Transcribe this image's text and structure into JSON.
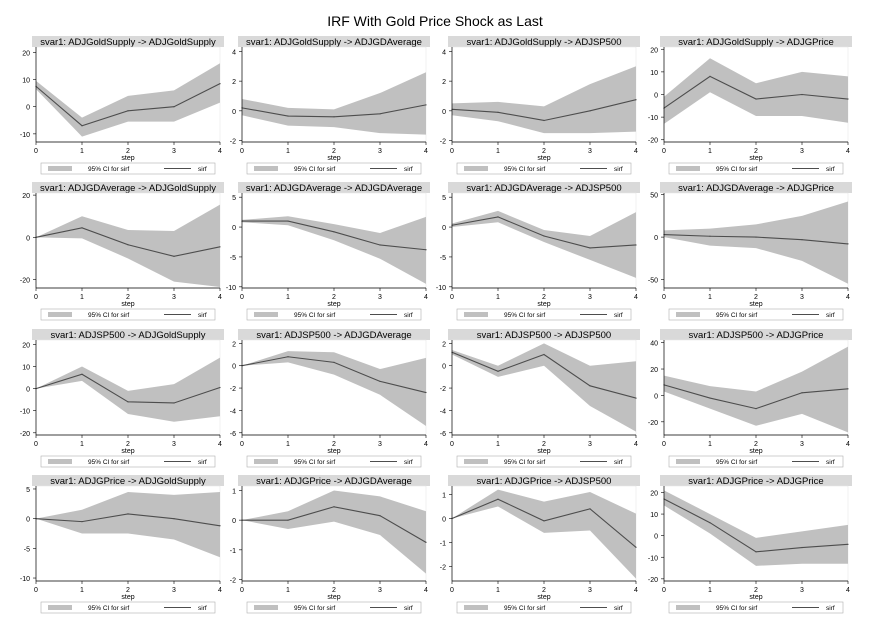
{
  "title": "IRF With Gold Price Shock as Last",
  "common": {
    "xlabel": "step",
    "x": [
      0,
      1,
      2,
      3,
      4
    ],
    "legend": {
      "ci_label": "95% CI for sirf",
      "line_label": "sirf",
      "placement": "bottom"
    },
    "colors": {
      "band": "#c0c0c0",
      "line": "#4d4d4d",
      "header": "#d9d9d9"
    }
  },
  "chart_data": [
    {
      "type": "area",
      "title": "svar1: ADJGoldSupply -> ADJGoldSupply",
      "yticks": [
        -10,
        0,
        10,
        20
      ],
      "ylim": [
        -13,
        22
      ],
      "sirf": [
        7.5,
        -7,
        -1.5,
        0,
        8.5
      ],
      "lower": [
        6.5,
        -11,
        -5.5,
        -5.5,
        1.5
      ],
      "upper": [
        9.5,
        -4,
        4,
        6,
        16
      ]
    },
    {
      "type": "area",
      "title": "svar1: ADJGoldSupply -> ADJGDAverage",
      "yticks": [
        -2,
        0,
        2,
        4
      ],
      "ylim": [
        -2.1,
        4.3
      ],
      "sirf": [
        0.2,
        -0.35,
        -0.4,
        -0.2,
        0.4
      ],
      "lower": [
        -0.3,
        -1,
        -1.1,
        -1.5,
        -1.6
      ],
      "upper": [
        0.8,
        0.2,
        0.1,
        1.2,
        2.6
      ]
    },
    {
      "type": "area",
      "title": "svar1: ADJGoldSupply -> ADJSP500",
      "yticks": [
        -2,
        0,
        2,
        4
      ],
      "ylim": [
        -2.1,
        4.3
      ],
      "sirf": [
        0.1,
        -0.1,
        -0.65,
        0,
        0.75
      ],
      "lower": [
        -0.3,
        -0.7,
        -1.5,
        -1.5,
        -1.4
      ],
      "upper": [
        0.5,
        0.6,
        0.3,
        1.8,
        3
      ]
    },
    {
      "type": "area",
      "title": "svar1: ADJGoldSupply -> ADJGPrice",
      "yticks": [
        -20,
        -10,
        0,
        10,
        20
      ],
      "ylim": [
        -21,
        21
      ],
      "sirf": [
        -6,
        8,
        -2,
        0,
        -2
      ],
      "lower": [
        -13,
        1,
        -9.5,
        -9.5,
        -12.5
      ],
      "upper": [
        -1,
        16,
        5,
        10,
        8
      ]
    },
    {
      "type": "area",
      "title": "svar1: ADJGDAverage -> ADJGoldSupply",
      "yticks": [
        -20,
        0,
        20
      ],
      "ylim": [
        -24,
        21
      ],
      "sirf": [
        0,
        4.5,
        -3.5,
        -9,
        -4.5
      ],
      "lower": [
        0,
        -0.5,
        -10,
        -21,
        -23.5
      ],
      "upper": [
        0,
        10,
        3.5,
        3,
        15.5
      ]
    },
    {
      "type": "area",
      "title": "svar1: ADJGDAverage -> ADJGDAverage",
      "yticks": [
        -10,
        -5,
        0,
        5
      ],
      "ylim": [
        -10.2,
        5.7
      ],
      "sirf": [
        1,
        1,
        -0.8,
        -3,
        -3.8
      ],
      "lower": [
        0.8,
        0.3,
        -2.2,
        -5.3,
        -9.5
      ],
      "upper": [
        1.2,
        1.8,
        0.5,
        -1,
        1.7
      ]
    },
    {
      "type": "area",
      "title": "svar1: ADJGDAverage -> ADJSP500",
      "yticks": [
        -10,
        -5,
        0,
        5
      ],
      "ylim": [
        -10.2,
        5.7
      ],
      "sirf": [
        0.3,
        1.7,
        -1.5,
        -3.5,
        -3
      ],
      "lower": [
        0,
        0.8,
        -2.5,
        -5.5,
        -8.5
      ],
      "upper": [
        0.6,
        2.7,
        -0.5,
        -1.5,
        2.5
      ]
    },
    {
      "type": "area",
      "title": "svar1: ADJGDAverage -> ADJGPrice",
      "yticks": [
        -50,
        0,
        50
      ],
      "ylim": [
        -60,
        52
      ],
      "sirf": [
        3,
        1,
        0,
        -3,
        -8
      ],
      "lower": [
        0,
        -10,
        -13,
        -28,
        -55
      ],
      "upper": [
        8,
        10,
        15,
        25,
        42
      ]
    },
    {
      "type": "area",
      "title": "svar1: ADJSP500 -> ADJGoldSupply",
      "yticks": [
        -20,
        -10,
        0,
        10,
        20
      ],
      "ylim": [
        -21,
        22
      ],
      "sirf": [
        0,
        6.5,
        -6,
        -6.5,
        0.5
      ],
      "lower": [
        0,
        3.5,
        -11.5,
        -15,
        -12.5
      ],
      "upper": [
        0,
        10,
        -1,
        2,
        14
      ]
    },
    {
      "type": "area",
      "title": "svar1: ADJSP500 -> ADJGDAverage",
      "yticks": [
        -6,
        -4,
        -2,
        0,
        2
      ],
      "ylim": [
        -6.2,
        2.3
      ],
      "sirf": [
        0,
        0.8,
        0.3,
        -1.4,
        -2.4
      ],
      "lower": [
        0,
        0.3,
        -0.8,
        -2.6,
        -5.4
      ],
      "upper": [
        0,
        1.3,
        1.2,
        -0.3,
        0.7
      ]
    },
    {
      "type": "area",
      "title": "svar1: ADJSP500 -> ADJSP500",
      "yticks": [
        -6,
        -4,
        -2,
        0,
        2
      ],
      "ylim": [
        -6.2,
        2.3
      ],
      "sirf": [
        1.2,
        -0.5,
        1,
        -1.8,
        -2.9
      ],
      "lower": [
        1,
        -1,
        0,
        -3.6,
        -5.9
      ],
      "upper": [
        1.4,
        0,
        2,
        0,
        0.4
      ]
    },
    {
      "type": "area",
      "title": "svar1: ADJSP500 -> ADJGPrice",
      "yticks": [
        -20,
        0,
        20,
        40
      ],
      "ylim": [
        -30,
        42
      ],
      "sirf": [
        8,
        -2,
        -10,
        2,
        5
      ],
      "lower": [
        3,
        -10,
        -23,
        -14,
        -28
      ],
      "upper": [
        15,
        7,
        3,
        18,
        37
      ]
    },
    {
      "type": "area",
      "title": "svar1: ADJGPrice -> ADJGoldSupply",
      "yticks": [
        -10,
        -5,
        0,
        5
      ],
      "ylim": [
        -10.5,
        5.5
      ],
      "sirf": [
        0,
        -0.5,
        0.8,
        0,
        -1.2
      ],
      "lower": [
        0,
        -2.5,
        -2.5,
        -3.5,
        -6.5
      ],
      "upper": [
        0,
        1.5,
        4.5,
        4,
        4.5
      ]
    },
    {
      "type": "area",
      "title": "svar1: ADJGPrice -> ADJGDAverage",
      "yticks": [
        -2,
        -1,
        0,
        1
      ],
      "ylim": [
        -2.05,
        1.15
      ],
      "sirf": [
        0,
        0,
        0.45,
        0.15,
        -0.75
      ],
      "lower": [
        0,
        -0.3,
        -0.05,
        -0.5,
        -1.8
      ],
      "upper": [
        0,
        0.3,
        1,
        0.8,
        0.3
      ]
    },
    {
      "type": "area",
      "title": "svar1: ADJGPrice -> ADJSP500",
      "yticks": [
        -2,
        -1,
        0,
        1
      ],
      "ylim": [
        -2.6,
        1.35
      ],
      "sirf": [
        0,
        0.8,
        -0.1,
        0.4,
        -1.2
      ],
      "lower": [
        0,
        0.5,
        -0.6,
        -0.5,
        -2.5
      ],
      "upper": [
        0,
        1.2,
        0.7,
        1.1,
        0.2
      ]
    },
    {
      "type": "area",
      "title": "svar1: ADJGPrice -> ADJGPrice",
      "yticks": [
        -20,
        -10,
        0,
        10,
        20
      ],
      "ylim": [
        -21,
        23
      ],
      "sirf": [
        17,
        6,
        -7.5,
        -5.5,
        -4
      ],
      "lower": [
        14,
        1,
        -14,
        -13,
        -13
      ],
      "upper": [
        21,
        10,
        -1,
        2,
        5
      ]
    }
  ]
}
